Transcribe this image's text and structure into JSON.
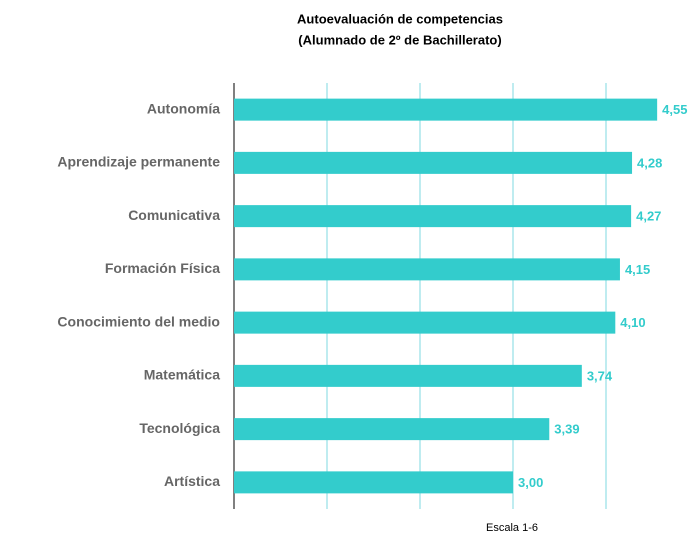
{
  "chart_data": {
    "type": "bar",
    "orientation": "horizontal",
    "title": "Autoevaluación de competencias",
    "subtitle": "(Alumnado de 2º de Bachillerato)",
    "xlabel": "Escala 1-6",
    "categories": [
      "Autonomía",
      "Aprendizaje permanente",
      "Comunicativa",
      "Formación Física",
      "Conocimiento del medio",
      "Matemática",
      "Tecnológica",
      "Artística"
    ],
    "values": [
      4.55,
      4.28,
      4.27,
      4.15,
      4.1,
      3.74,
      3.39,
      3.0
    ],
    "value_labels": [
      "4,55",
      "4,28",
      "4,27",
      "4,15",
      "4,10",
      "3,74",
      "3,39",
      "3,00"
    ],
    "color": "#33cccc",
    "xlim": [
      0,
      5
    ],
    "xticks": [
      1,
      2,
      3,
      4
    ],
    "grid": true
  }
}
